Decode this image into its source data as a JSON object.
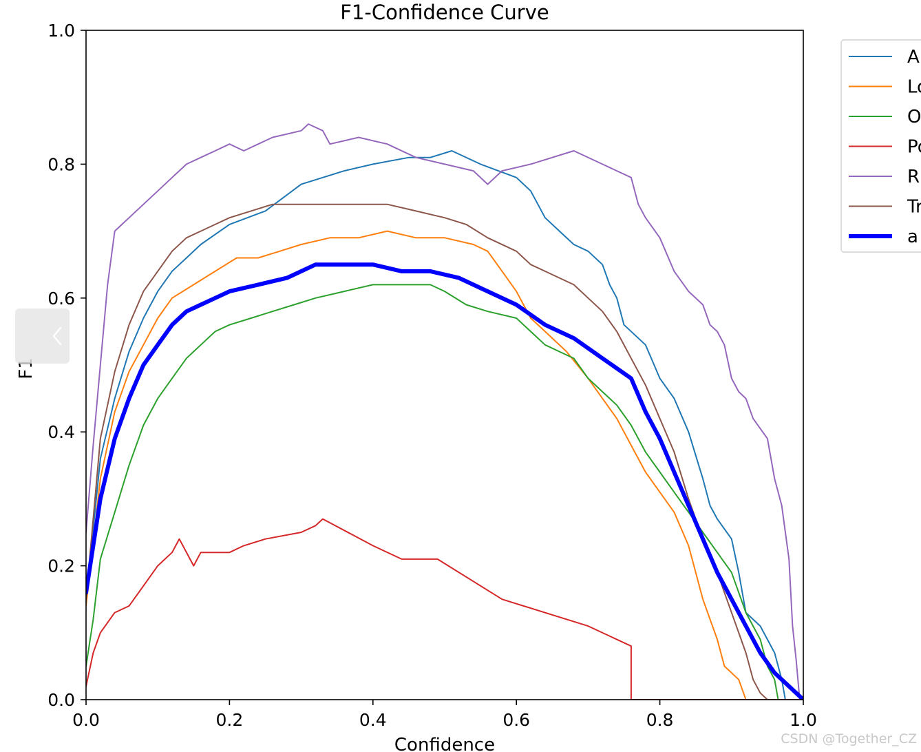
{
  "chart_data": {
    "type": "line",
    "title": "F1-Confidence Curve",
    "xlabel": "Confidence",
    "ylabel": "F1",
    "xlim": [
      0,
      1
    ],
    "ylim": [
      0,
      1
    ],
    "xticks": [
      "0.0",
      "0.2",
      "0.4",
      "0.6",
      "0.8",
      "1.0"
    ],
    "yticks": [
      "0.0",
      "0.2",
      "0.4",
      "0.6",
      "0.8",
      "1.0"
    ],
    "legend_position": "right, clipped",
    "series": [
      {
        "name": "A",
        "color": "#1f77b4",
        "width": 2,
        "points": [
          [
            0,
            0.15
          ],
          [
            0.02,
            0.36
          ],
          [
            0.04,
            0.45
          ],
          [
            0.06,
            0.52
          ],
          [
            0.08,
            0.57
          ],
          [
            0.1,
            0.61
          ],
          [
            0.12,
            0.64
          ],
          [
            0.14,
            0.66
          ],
          [
            0.16,
            0.68
          ],
          [
            0.2,
            0.71
          ],
          [
            0.25,
            0.73
          ],
          [
            0.3,
            0.77
          ],
          [
            0.33,
            0.78
          ],
          [
            0.36,
            0.79
          ],
          [
            0.4,
            0.8
          ],
          [
            0.45,
            0.81
          ],
          [
            0.48,
            0.81
          ],
          [
            0.51,
            0.82
          ],
          [
            0.55,
            0.8
          ],
          [
            0.6,
            0.78
          ],
          [
            0.62,
            0.76
          ],
          [
            0.64,
            0.72
          ],
          [
            0.66,
            0.7
          ],
          [
            0.68,
            0.68
          ],
          [
            0.7,
            0.67
          ],
          [
            0.72,
            0.65
          ],
          [
            0.73,
            0.62
          ],
          [
            0.74,
            0.6
          ],
          [
            0.75,
            0.56
          ],
          [
            0.78,
            0.53
          ],
          [
            0.8,
            0.48
          ],
          [
            0.82,
            0.45
          ],
          [
            0.84,
            0.4
          ],
          [
            0.86,
            0.33
          ],
          [
            0.87,
            0.29
          ],
          [
            0.88,
            0.27
          ],
          [
            0.9,
            0.24
          ],
          [
            0.91,
            0.19
          ],
          [
            0.92,
            0.13
          ],
          [
            0.94,
            0.11
          ],
          [
            0.96,
            0.07
          ],
          [
            0.97,
            0.03
          ],
          [
            0.975,
            0
          ]
        ]
      },
      {
        "name": "Lo",
        "color": "#ff7f0e",
        "width": 2,
        "points": [
          [
            0,
            0.14
          ],
          [
            0.02,
            0.33
          ],
          [
            0.04,
            0.43
          ],
          [
            0.06,
            0.49
          ],
          [
            0.08,
            0.53
          ],
          [
            0.1,
            0.57
          ],
          [
            0.12,
            0.6
          ],
          [
            0.15,
            0.62
          ],
          [
            0.18,
            0.64
          ],
          [
            0.21,
            0.66
          ],
          [
            0.24,
            0.66
          ],
          [
            0.27,
            0.67
          ],
          [
            0.3,
            0.68
          ],
          [
            0.34,
            0.69
          ],
          [
            0.38,
            0.69
          ],
          [
            0.42,
            0.7
          ],
          [
            0.46,
            0.69
          ],
          [
            0.5,
            0.69
          ],
          [
            0.54,
            0.68
          ],
          [
            0.56,
            0.67
          ],
          [
            0.58,
            0.64
          ],
          [
            0.6,
            0.61
          ],
          [
            0.62,
            0.57
          ],
          [
            0.64,
            0.55
          ],
          [
            0.67,
            0.52
          ],
          [
            0.7,
            0.48
          ],
          [
            0.72,
            0.45
          ],
          [
            0.74,
            0.42
          ],
          [
            0.76,
            0.38
          ],
          [
            0.78,
            0.34
          ],
          [
            0.8,
            0.31
          ],
          [
            0.82,
            0.28
          ],
          [
            0.84,
            0.23
          ],
          [
            0.85,
            0.19
          ],
          [
            0.86,
            0.15
          ],
          [
            0.88,
            0.09
          ],
          [
            0.89,
            0.05
          ],
          [
            0.91,
            0.03
          ],
          [
            0.92,
            0
          ]
        ]
      },
      {
        "name": "O",
        "color": "#2ca02c",
        "width": 2,
        "points": [
          [
            0,
            0.05
          ],
          [
            0.01,
            0.12
          ],
          [
            0.02,
            0.21
          ],
          [
            0.04,
            0.28
          ],
          [
            0.06,
            0.35
          ],
          [
            0.08,
            0.41
          ],
          [
            0.1,
            0.45
          ],
          [
            0.12,
            0.48
          ],
          [
            0.14,
            0.51
          ],
          [
            0.16,
            0.53
          ],
          [
            0.18,
            0.55
          ],
          [
            0.2,
            0.56
          ],
          [
            0.23,
            0.57
          ],
          [
            0.26,
            0.58
          ],
          [
            0.29,
            0.59
          ],
          [
            0.32,
            0.6
          ],
          [
            0.36,
            0.61
          ],
          [
            0.4,
            0.62
          ],
          [
            0.44,
            0.62
          ],
          [
            0.48,
            0.62
          ],
          [
            0.5,
            0.61
          ],
          [
            0.53,
            0.59
          ],
          [
            0.56,
            0.58
          ],
          [
            0.6,
            0.57
          ],
          [
            0.62,
            0.55
          ],
          [
            0.64,
            0.53
          ],
          [
            0.66,
            0.52
          ],
          [
            0.68,
            0.51
          ],
          [
            0.7,
            0.48
          ],
          [
            0.72,
            0.46
          ],
          [
            0.74,
            0.44
          ],
          [
            0.76,
            0.41
          ],
          [
            0.78,
            0.37
          ],
          [
            0.8,
            0.34
          ],
          [
            0.82,
            0.31
          ],
          [
            0.84,
            0.28
          ],
          [
            0.86,
            0.25
          ],
          [
            0.88,
            0.22
          ],
          [
            0.9,
            0.19
          ],
          [
            0.92,
            0.13
          ],
          [
            0.94,
            0.09
          ],
          [
            0.95,
            0.05
          ],
          [
            0.96,
            0.03
          ],
          [
            0.965,
            0
          ]
        ]
      },
      {
        "name": "Po",
        "color": "#d62728",
        "width": 2,
        "points": [
          [
            0,
            0.02
          ],
          [
            0.01,
            0.07
          ],
          [
            0.02,
            0.1
          ],
          [
            0.04,
            0.13
          ],
          [
            0.06,
            0.14
          ],
          [
            0.08,
            0.17
          ],
          [
            0.1,
            0.2
          ],
          [
            0.12,
            0.22
          ],
          [
            0.13,
            0.24
          ],
          [
            0.15,
            0.2
          ],
          [
            0.16,
            0.22
          ],
          [
            0.18,
            0.22
          ],
          [
            0.2,
            0.22
          ],
          [
            0.22,
            0.23
          ],
          [
            0.25,
            0.24
          ],
          [
            0.3,
            0.25
          ],
          [
            0.32,
            0.26
          ],
          [
            0.33,
            0.27
          ],
          [
            0.4,
            0.23
          ],
          [
            0.44,
            0.21
          ],
          [
            0.49,
            0.21
          ],
          [
            0.58,
            0.15
          ],
          [
            0.7,
            0.11
          ],
          [
            0.76,
            0.08
          ],
          [
            0.76,
            0
          ],
          [
            1.0,
            0
          ]
        ]
      },
      {
        "name": "R",
        "color": "#9467bd",
        "width": 2,
        "points": [
          [
            0,
            0.25
          ],
          [
            0.01,
            0.38
          ],
          [
            0.02,
            0.5
          ],
          [
            0.03,
            0.62
          ],
          [
            0.04,
            0.7
          ],
          [
            0.05,
            0.71
          ],
          [
            0.06,
            0.72
          ],
          [
            0.08,
            0.74
          ],
          [
            0.1,
            0.76
          ],
          [
            0.12,
            0.78
          ],
          [
            0.14,
            0.8
          ],
          [
            0.16,
            0.81
          ],
          [
            0.18,
            0.82
          ],
          [
            0.2,
            0.83
          ],
          [
            0.22,
            0.82
          ],
          [
            0.24,
            0.83
          ],
          [
            0.26,
            0.84
          ],
          [
            0.3,
            0.85
          ],
          [
            0.31,
            0.86
          ],
          [
            0.33,
            0.85
          ],
          [
            0.34,
            0.83
          ],
          [
            0.38,
            0.84
          ],
          [
            0.42,
            0.83
          ],
          [
            0.46,
            0.81
          ],
          [
            0.5,
            0.8
          ],
          [
            0.54,
            0.79
          ],
          [
            0.56,
            0.77
          ],
          [
            0.58,
            0.79
          ],
          [
            0.62,
            0.8
          ],
          [
            0.68,
            0.82
          ],
          [
            0.72,
            0.8
          ],
          [
            0.76,
            0.78
          ],
          [
            0.77,
            0.74
          ],
          [
            0.78,
            0.72
          ],
          [
            0.8,
            0.69
          ],
          [
            0.82,
            0.64
          ],
          [
            0.84,
            0.61
          ],
          [
            0.86,
            0.59
          ],
          [
            0.87,
            0.56
          ],
          [
            0.88,
            0.55
          ],
          [
            0.89,
            0.53
          ],
          [
            0.9,
            0.48
          ],
          [
            0.91,
            0.46
          ],
          [
            0.92,
            0.45
          ],
          [
            0.93,
            0.42
          ],
          [
            0.95,
            0.39
          ],
          [
            0.96,
            0.33
          ],
          [
            0.97,
            0.29
          ],
          [
            0.98,
            0.21
          ],
          [
            0.985,
            0.11
          ],
          [
            0.99,
            0.06
          ],
          [
            0.995,
            0
          ]
        ]
      },
      {
        "name": "Tr",
        "color": "#8c564b",
        "width": 2,
        "points": [
          [
            0,
            0.15
          ],
          [
            0.02,
            0.39
          ],
          [
            0.04,
            0.49
          ],
          [
            0.06,
            0.56
          ],
          [
            0.08,
            0.61
          ],
          [
            0.1,
            0.64
          ],
          [
            0.12,
            0.67
          ],
          [
            0.14,
            0.69
          ],
          [
            0.16,
            0.7
          ],
          [
            0.18,
            0.71
          ],
          [
            0.2,
            0.72
          ],
          [
            0.23,
            0.73
          ],
          [
            0.26,
            0.74
          ],
          [
            0.3,
            0.74
          ],
          [
            0.34,
            0.74
          ],
          [
            0.38,
            0.74
          ],
          [
            0.42,
            0.74
          ],
          [
            0.46,
            0.73
          ],
          [
            0.5,
            0.72
          ],
          [
            0.53,
            0.71
          ],
          [
            0.56,
            0.69
          ],
          [
            0.6,
            0.67
          ],
          [
            0.62,
            0.65
          ],
          [
            0.64,
            0.64
          ],
          [
            0.66,
            0.63
          ],
          [
            0.68,
            0.62
          ],
          [
            0.7,
            0.6
          ],
          [
            0.72,
            0.58
          ],
          [
            0.74,
            0.55
          ],
          [
            0.76,
            0.51
          ],
          [
            0.78,
            0.47
          ],
          [
            0.8,
            0.42
          ],
          [
            0.82,
            0.37
          ],
          [
            0.84,
            0.3
          ],
          [
            0.86,
            0.24
          ],
          [
            0.88,
            0.19
          ],
          [
            0.9,
            0.13
          ],
          [
            0.92,
            0.07
          ],
          [
            0.93,
            0.03
          ],
          [
            0.94,
            0.01
          ],
          [
            0.95,
            0
          ]
        ]
      },
      {
        "name": "a",
        "color": "#0000ff",
        "width": 6,
        "points": [
          [
            0,
            0.16
          ],
          [
            0.02,
            0.3
          ],
          [
            0.04,
            0.39
          ],
          [
            0.06,
            0.45
          ],
          [
            0.08,
            0.5
          ],
          [
            0.1,
            0.53
          ],
          [
            0.12,
            0.56
          ],
          [
            0.14,
            0.58
          ],
          [
            0.16,
            0.59
          ],
          [
            0.18,
            0.6
          ],
          [
            0.2,
            0.61
          ],
          [
            0.24,
            0.62
          ],
          [
            0.28,
            0.63
          ],
          [
            0.32,
            0.65
          ],
          [
            0.36,
            0.65
          ],
          [
            0.4,
            0.65
          ],
          [
            0.44,
            0.64
          ],
          [
            0.48,
            0.64
          ],
          [
            0.52,
            0.63
          ],
          [
            0.56,
            0.61
          ],
          [
            0.6,
            0.59
          ],
          [
            0.64,
            0.56
          ],
          [
            0.68,
            0.54
          ],
          [
            0.72,
            0.51
          ],
          [
            0.76,
            0.48
          ],
          [
            0.78,
            0.43
          ],
          [
            0.8,
            0.39
          ],
          [
            0.82,
            0.34
          ],
          [
            0.84,
            0.29
          ],
          [
            0.86,
            0.24
          ],
          [
            0.88,
            0.19
          ],
          [
            0.9,
            0.15
          ],
          [
            0.92,
            0.11
          ],
          [
            0.94,
            0.07
          ],
          [
            0.96,
            0.04
          ],
          [
            0.98,
            0.02
          ],
          [
            1.0,
            0
          ]
        ]
      }
    ]
  },
  "overlay": {
    "watermark": "CSDN @Together_CZ",
    "nav_icon": "chevron-left-icon"
  }
}
